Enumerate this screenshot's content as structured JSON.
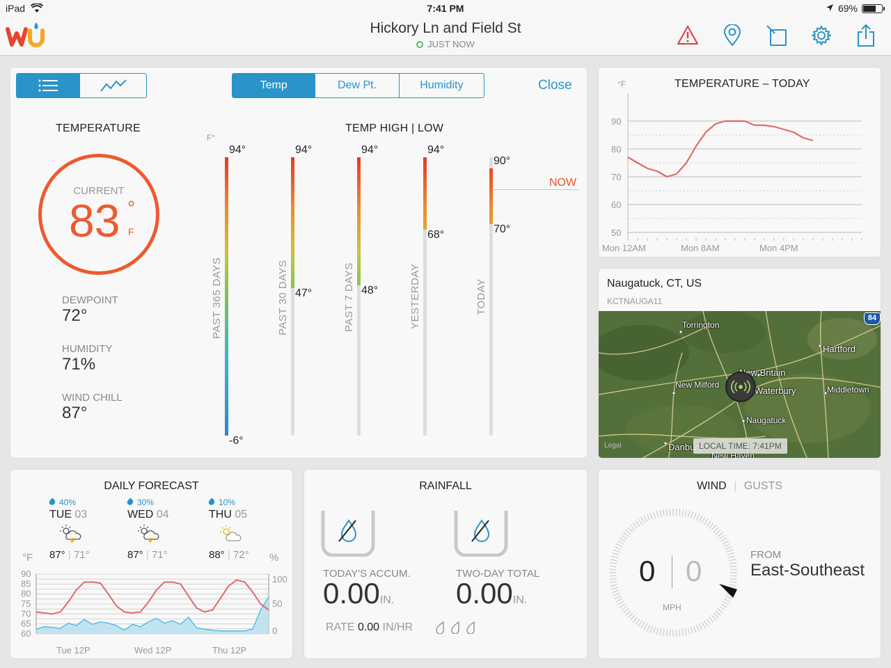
{
  "status": {
    "device": "iPad",
    "time": "7:41 PM",
    "battery": "69%",
    "battery_level": 0.69
  },
  "nav": {
    "title": "Hickory Ln and Field St",
    "subtitle": "JUST NOW",
    "icons": [
      "alert-icon",
      "location-pin-icon",
      "no-rotate-icon",
      "gear-icon",
      "share-icon"
    ]
  },
  "main": {
    "segments": [
      "Temp",
      "Dew Pt.",
      "Humidity"
    ],
    "close": "Close",
    "temperature_title": "TEMPERATURE",
    "current_label": "CURRENT",
    "current_value": "83",
    "current_deg": "°",
    "current_unit": "F",
    "stats": [
      {
        "label": "DEWPOINT",
        "value": "72°"
      },
      {
        "label": "HUMIDITY",
        "value": "71%"
      },
      {
        "label": "WIND CHILL",
        "value": "87°"
      }
    ],
    "hl_title": "TEMP HIGH | LOW",
    "hl_unit": "F°",
    "now_label": "NOW",
    "bars": [
      {
        "label": "PAST 365 DAYS",
        "high": "94°",
        "low": "-6°",
        "high_val": 94,
        "low_val": -6
      },
      {
        "label": "PAST 30 DAYS",
        "high": "94°",
        "low": "47°",
        "high_val": 94,
        "low_val": 47
      },
      {
        "label": "PAST 7 DAYS",
        "high": "94°",
        "low": "48°",
        "high_val": 94,
        "low_val": 48
      },
      {
        "label": "YESTERDAY",
        "high": "94°",
        "low": "68°",
        "high_val": 94,
        "low_val": 68
      },
      {
        "label": "TODAY",
        "high": "90°",
        "low": "70°",
        "high_val": 90,
        "low_val": 70
      }
    ]
  },
  "today_chart": {
    "title": "TEMPERATURE – TODAY",
    "unit": "°F",
    "chart_data": {
      "type": "line",
      "title": "TEMPERATURE – TODAY",
      "ylabel": "°F",
      "ylim": [
        50,
        90
      ],
      "yticks": [
        "90",
        "80",
        "70",
        "60",
        "50"
      ],
      "xticks": [
        "Mon 12AM",
        "Mon 8AM",
        "Mon 4PM"
      ],
      "x_hours": [
        0,
        1,
        2,
        3,
        4,
        5,
        6,
        7,
        8,
        9,
        10,
        11,
        12,
        13,
        14,
        15,
        16,
        17,
        18,
        19
      ],
      "values": [
        77,
        75,
        73,
        72,
        70,
        71,
        75,
        81,
        86,
        89,
        90,
        90,
        90,
        88.5,
        88.5,
        88,
        87,
        86,
        84,
        83
      ]
    }
  },
  "map": {
    "place": "Naugatuck, CT, US",
    "station": "KCTNAUGA11",
    "local_time": "LOCAL TIME: 7:41PM",
    "highway": "84",
    "legal": "Legal",
    "towns": [
      "Torrington",
      "Hartford",
      "New Britain",
      "New Milford",
      "Waterbury",
      "Middletown",
      "Naugatuck",
      "Danbury",
      "New Haven"
    ]
  },
  "forecast": {
    "title": "DAILY FORECAST",
    "unit_left": "°F",
    "unit_right": "%",
    "days": [
      {
        "precip": "40%",
        "day": "TUE",
        "date": "03",
        "high": "87°",
        "low": "71°"
      },
      {
        "precip": "30%",
        "day": "WED",
        "date": "04",
        "high": "87°",
        "low": "71°"
      },
      {
        "precip": "10%",
        "day": "THU",
        "date": "05",
        "high": "88°",
        "low": "72°"
      }
    ],
    "chart_data": {
      "type": "line",
      "ylim": [
        60,
        90
      ],
      "yticks_left": [
        "90",
        "85",
        "80",
        "75",
        "70",
        "65",
        "60"
      ],
      "yticks_right": [
        "100",
        "50",
        "0"
      ],
      "xticks": [
        "Tue 12P",
        "Wed 12P",
        "Thu 12P"
      ],
      "series": [
        {
          "values": [
            71,
            70.5,
            70,
            71,
            76,
            82,
            86,
            86,
            85.5,
            80,
            74,
            71,
            70.5,
            71,
            76,
            82,
            86,
            86,
            85,
            79,
            73,
            71,
            72,
            78,
            84,
            87,
            86,
            81,
            75,
            72
          ]
        },
        {
          "values": [
            8,
            12,
            11,
            9,
            18,
            14,
            24,
            16,
            20,
            18,
            14,
            6,
            16,
            12,
            20,
            26,
            18,
            22,
            16,
            28,
            10,
            8,
            6,
            5,
            5,
            5,
            5,
            8,
            40,
            62
          ]
        }
      ]
    }
  },
  "rainfall": {
    "title": "RAINFALL",
    "today_label": "TODAY'S ACCUM.",
    "today_value": "0.00",
    "two_day_label": "TWO-DAY TOTAL",
    "two_day_value": "0.00",
    "unit": "IN.",
    "rate_label": "RATE",
    "rate_value": "0.00",
    "rate_unit": "IN/HR"
  },
  "wind": {
    "title": "WIND",
    "gusts": "GUSTS",
    "speed": "0",
    "gust_speed": "0",
    "unit": "MPH",
    "from_label": "FROM",
    "direction": "East-Southeast"
  },
  "colors": {
    "accent": "#2a93c9",
    "temp_ring": "#ee5a2f",
    "line_red": "#e06a6a",
    "humidity_blue": "#5bbbe0"
  }
}
